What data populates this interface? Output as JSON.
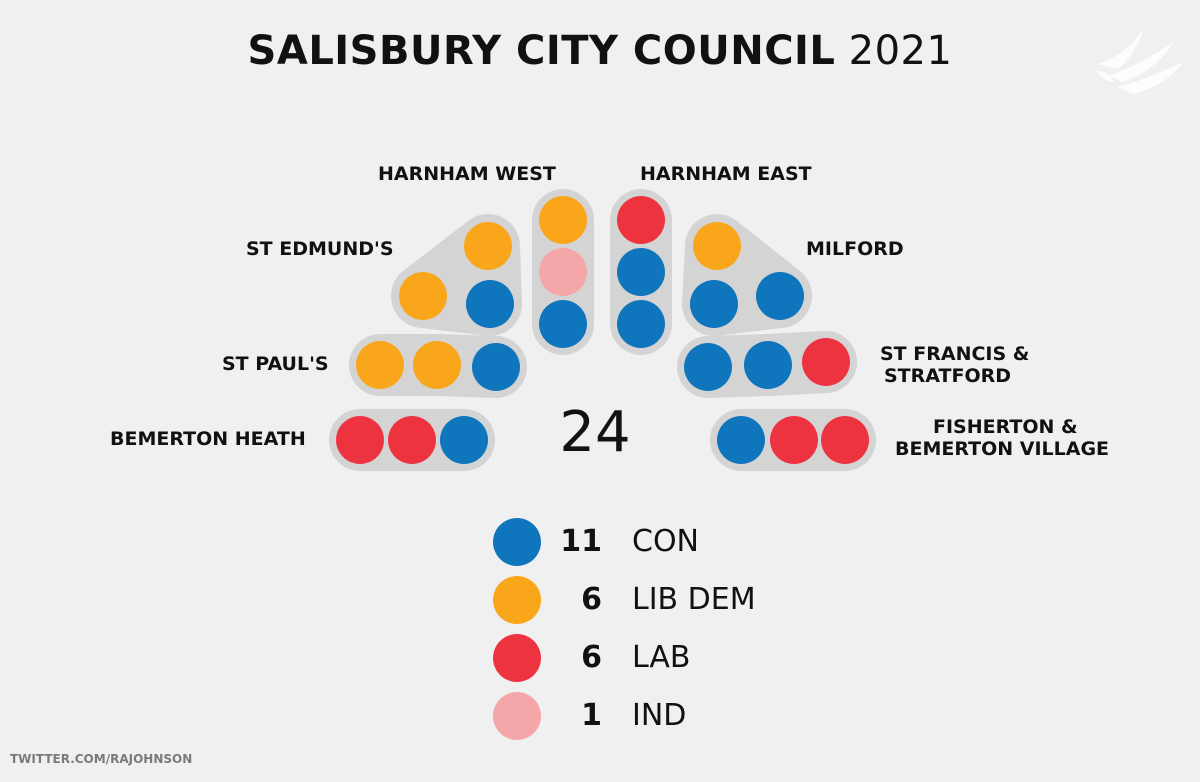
{
  "title": {
    "bold": "SALISBURY CITY COUNCIL",
    "year": "2021"
  },
  "total_seats": "24",
  "credit": "TWITTER.COM/RAJOHNSON",
  "colors": {
    "CON": "#0f75bc",
    "LIB DEM": "#faa61a",
    "LAB": "#ee3340",
    "IND": "#f4a6a8",
    "pill": "#d4d4d4"
  },
  "wards": [
    {
      "name": "HARNHAM WEST",
      "seats": [
        "LIB DEM",
        "IND",
        "CON"
      ]
    },
    {
      "name": "HARNHAM EAST",
      "seats": [
        "LAB",
        "CON",
        "CON"
      ]
    },
    {
      "name": "ST EDMUND'S",
      "seats": [
        "LIB DEM",
        "LIB DEM",
        "CON"
      ]
    },
    {
      "name": "MILFORD",
      "seats": [
        "LIB DEM",
        "CON",
        "CON"
      ]
    },
    {
      "name": "ST PAUL'S",
      "seats": [
        "LIB DEM",
        "LIB DEM",
        "CON"
      ]
    },
    {
      "name_lines": [
        "ST FRANCIS &",
        "STRATFORD"
      ],
      "seats": [
        "CON",
        "CON",
        "LAB"
      ]
    },
    {
      "name": "BEMERTON HEATH",
      "seats": [
        "LAB",
        "LAB",
        "CON"
      ]
    },
    {
      "name_lines": [
        "FISHERTON &",
        "BEMERTON VILLAGE"
      ],
      "seats": [
        "CON",
        "LAB",
        "LAB"
      ]
    }
  ],
  "legend": [
    {
      "count": "11",
      "party": "CON",
      "color": "#0f75bc"
    },
    {
      "count": "6",
      "party": "LIB DEM",
      "color": "#faa61a"
    },
    {
      "count": "6",
      "party": "LAB",
      "color": "#ee3340"
    },
    {
      "count": "1",
      "party": "IND",
      "color": "#f4a6a8"
    }
  ]
}
